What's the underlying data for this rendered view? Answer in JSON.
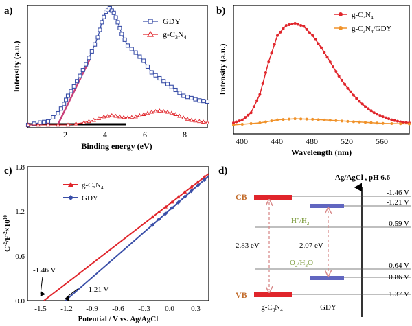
{
  "colors": {
    "blue": "#3a4fa8",
    "red": "#e0252b",
    "pink": "#c8407a",
    "orange": "#f0922a",
    "violet": "#8b4b9c",
    "band": "#6166c0",
    "brown": "#c26b2a",
    "green": "#6b8e23",
    "darkred": "#c0392b"
  },
  "chart_data": [
    {
      "panel": "a)",
      "type": "line",
      "xlabel": "Binding energy (eV)",
      "ylabel": "Intensity (a.u.)",
      "xlim": [
        0,
        9
      ],
      "xticks": [
        "2",
        "4",
        "6",
        "8"
      ],
      "series": [
        {
          "name": "GDY",
          "x": [
            0,
            0.6,
            1.0,
            1.5,
            1.8,
            2.0,
            2.3,
            2.6,
            2.9,
            3.2,
            3.5,
            3.7,
            3.9,
            4.1,
            4.3,
            4.5,
            4.7,
            5.0,
            5.4,
            5.8,
            6.2,
            6.6,
            7.0,
            7.4,
            7.8,
            8.2,
            8.6,
            9.0
          ],
          "y": [
            0.0,
            0.02,
            0.03,
            0.1,
            0.18,
            0.25,
            0.33,
            0.42,
            0.52,
            0.63,
            0.75,
            0.88,
            0.97,
            1.0,
            0.96,
            0.88,
            0.78,
            0.68,
            0.62,
            0.55,
            0.45,
            0.4,
            0.35,
            0.3,
            0.25,
            0.23,
            0.21,
            0.2
          ]
        },
        {
          "name": "g-C3N4",
          "x": [
            0,
            1.0,
            2.0,
            2.8,
            3.3,
            3.8,
            4.2,
            4.6,
            5.0,
            5.4,
            5.8,
            6.2,
            6.6,
            7.0,
            7.4,
            7.8,
            8.2,
            8.6,
            9.0
          ],
          "y": [
            0.0,
            0.0,
            0.0,
            0.02,
            0.04,
            0.07,
            0.08,
            0.07,
            0.06,
            0.07,
            0.09,
            0.11,
            0.12,
            0.11,
            0.09,
            0.06,
            0.04,
            0.03,
            0.02
          ]
        }
      ],
      "legend": [
        "GDY",
        "g-C3N4"
      ]
    },
    {
      "panel": "b)",
      "type": "line",
      "xlabel": "Wavelength (nm)",
      "ylabel": "Intensity (a.u.)",
      "xlim": [
        390,
        590
      ],
      "xticks": [
        "400",
        "440",
        "480",
        "520",
        "560"
      ],
      "series": [
        {
          "name": "g-C3N4",
          "x": [
            390,
            400,
            410,
            420,
            430,
            440,
            450,
            460,
            470,
            480,
            490,
            500,
            510,
            520,
            530,
            540,
            550,
            560,
            570,
            580,
            590
          ],
          "y": [
            0.02,
            0.05,
            0.12,
            0.3,
            0.62,
            0.88,
            0.98,
            1.0,
            0.97,
            0.88,
            0.76,
            0.62,
            0.48,
            0.36,
            0.26,
            0.18,
            0.12,
            0.08,
            0.05,
            0.03,
            0.02
          ]
        },
        {
          "name": "g-C3N4/GDY",
          "x": [
            390,
            420,
            440,
            460,
            480,
            500,
            520,
            540,
            560,
            590
          ],
          "y": [
            0.0,
            0.02,
            0.05,
            0.06,
            0.055,
            0.045,
            0.035,
            0.025,
            0.015,
            0.01
          ]
        }
      ],
      "legend": [
        "g-C3N4",
        "g-C3N4/GDY"
      ]
    },
    {
      "panel": "c)",
      "type": "line",
      "xlabel": "Potential / V vs. Ag/AgCl",
      "ylabel": "C⁻²/F⁻²×10¹⁰",
      "xlim": [
        -1.65,
        0.45
      ],
      "ylim": [
        0,
        1.8
      ],
      "xticks": [
        "-1.5",
        "-1.2",
        "-0.9",
        "-0.6",
        "-0.3",
        "0.0",
        "0.3"
      ],
      "yticks": [
        "0.0",
        "0.6",
        "1.2",
        "1.8"
      ],
      "series": [
        {
          "name": "g-C3N4",
          "x": [
            -1.46,
            0.45
          ],
          "y": [
            0.0,
            1.71
          ]
        },
        {
          "name": "GDY",
          "x": [
            -1.21,
            0.45
          ],
          "y": [
            0.0,
            1.68
          ]
        }
      ],
      "annotations": [
        "-1.46 V",
        "-1.21 V"
      ],
      "legend": [
        "g-C3N4",
        "GDY"
      ]
    },
    {
      "panel": "d)",
      "type": "diagram",
      "title": "Ag/AgCl , pH 6.6",
      "levels": [
        {
          "label": "-1.46 V",
          "value": -1.46
        },
        {
          "label": "-1.21 V",
          "value": -1.21
        },
        {
          "label": "-0.59 V",
          "value": -0.59
        },
        {
          "label": "0.64 V",
          "value": 0.64
        },
        {
          "label": "0.86 V",
          "value": 0.86
        },
        {
          "label": "1.37 V",
          "value": 1.37
        }
      ],
      "band_labels": {
        "cb": "CB",
        "vb": "VB"
      },
      "materials": [
        "g-C3N4",
        "GDY"
      ],
      "gaps": [
        "2.83 eV",
        "2.07 eV"
      ],
      "redox": [
        "H+/H2",
        "O2/H2O"
      ]
    }
  ]
}
